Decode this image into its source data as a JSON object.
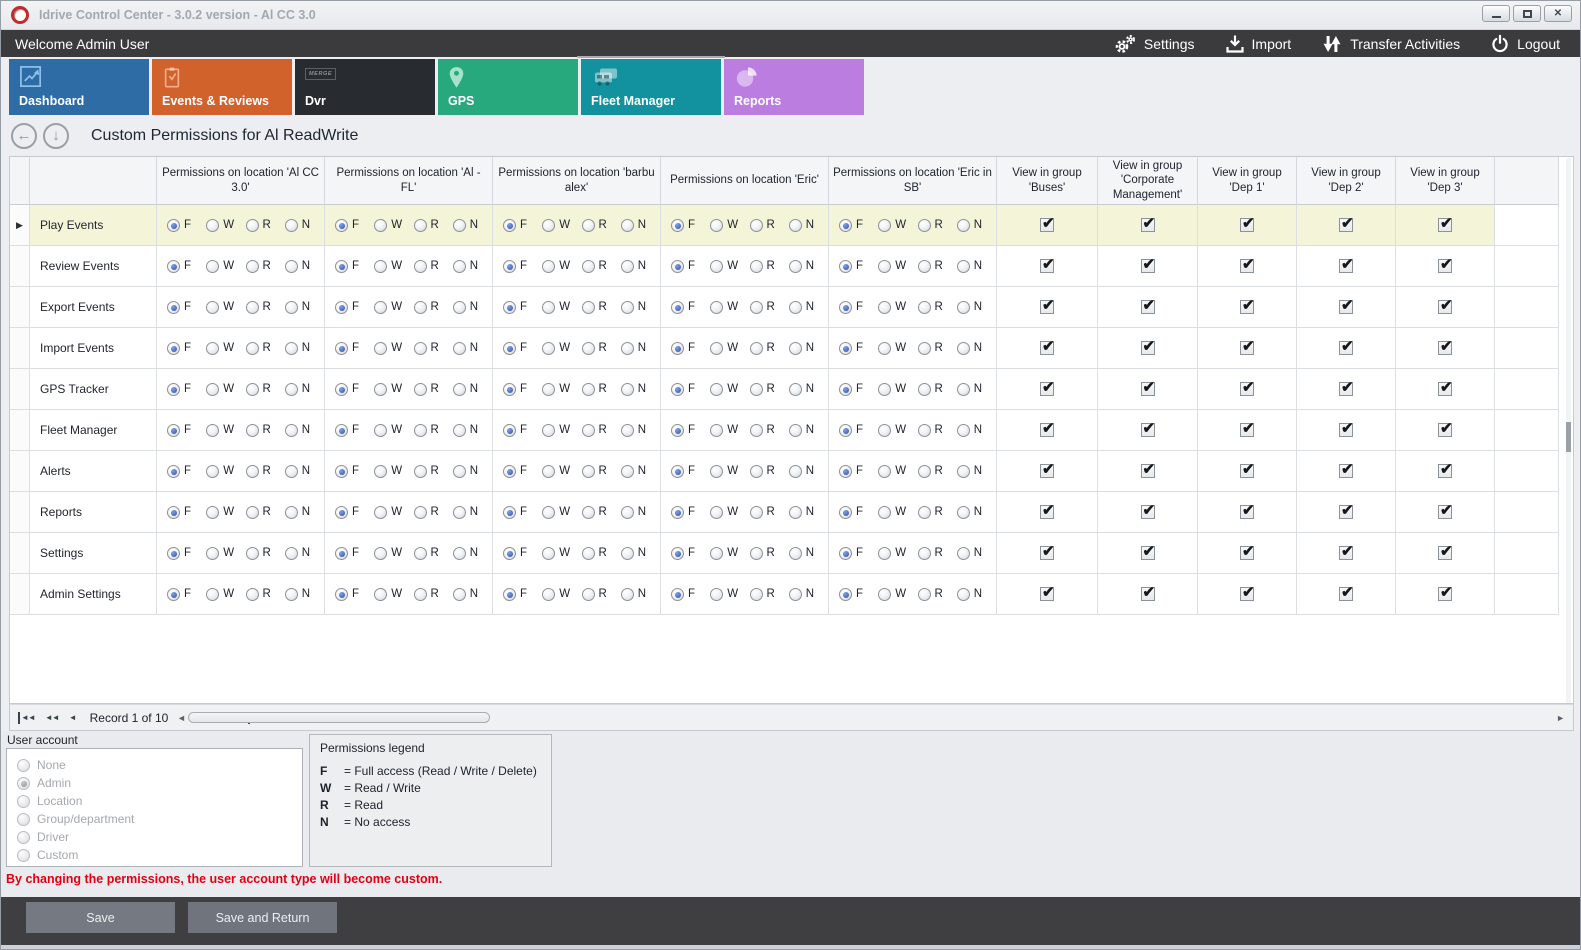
{
  "window": {
    "title": "Idrive Control Center - 3.0.2 version - Al CC 3.0"
  },
  "topbar": {
    "welcome": "Welcome Admin User",
    "actions": [
      {
        "label": "Settings",
        "icon": "gears-icon"
      },
      {
        "label": "Import",
        "icon": "import-icon"
      },
      {
        "label": "Transfer Activities",
        "icon": "transfer-icon"
      },
      {
        "label": "Logout",
        "icon": "power-icon"
      }
    ]
  },
  "tabs": [
    {
      "label": "Dashboard",
      "icon": "chart-trend-icon",
      "color": "#2e6ca5",
      "active": false
    },
    {
      "label": "Events & Reviews",
      "icon": "clipboard-check-icon",
      "color": "#d2622b",
      "active": false
    },
    {
      "label": "Dvr",
      "icon": "merge-badge-icon",
      "color": "#282c31",
      "active": false
    },
    {
      "label": "GPS",
      "icon": "map-pin-icon",
      "color": "#27a87d",
      "active": false
    },
    {
      "label": "Fleet Manager",
      "icon": "fleet-vehicles-icon",
      "color": "#11929e",
      "active": true
    },
    {
      "label": "Reports",
      "icon": "pie-chart-icon",
      "color": "#bc7de1",
      "active": false
    }
  ],
  "page": {
    "title": "Custom Permissions for Al ReadWrite"
  },
  "grid": {
    "permission_columns": [
      "Permissions on location 'Al CC 3.0'",
      "Permissions on location 'Al - FL'",
      "Permissions on location 'barbu alex'",
      "Permissions on location 'Eric'",
      "Permissions on location 'Eric in SB'"
    ],
    "group_columns": [
      "View in group 'Buses'",
      "View in group 'Corporate Management'",
      "View in group 'Dep 1'",
      "View in group 'Dep 2'",
      "View in group 'Dep 3'"
    ],
    "radio_options": [
      "F",
      "W",
      "R",
      "N"
    ],
    "rows": [
      {
        "label": "Play Events",
        "selected": true,
        "permissions": [
          "F",
          "F",
          "F",
          "F",
          "F"
        ],
        "groups": [
          true,
          true,
          true,
          true,
          true
        ]
      },
      {
        "label": "Review Events",
        "selected": false,
        "permissions": [
          "F",
          "F",
          "F",
          "F",
          "F"
        ],
        "groups": [
          true,
          true,
          true,
          true,
          true
        ]
      },
      {
        "label": "Export Events",
        "selected": false,
        "permissions": [
          "F",
          "F",
          "F",
          "F",
          "F"
        ],
        "groups": [
          true,
          true,
          true,
          true,
          true
        ]
      },
      {
        "label": "Import Events",
        "selected": false,
        "permissions": [
          "F",
          "F",
          "F",
          "F",
          "F"
        ],
        "groups": [
          true,
          true,
          true,
          true,
          true
        ]
      },
      {
        "label": "GPS Tracker",
        "selected": false,
        "permissions": [
          "F",
          "F",
          "F",
          "F",
          "F"
        ],
        "groups": [
          true,
          true,
          true,
          true,
          true
        ]
      },
      {
        "label": "Fleet Manager",
        "selected": false,
        "permissions": [
          "F",
          "F",
          "F",
          "F",
          "F"
        ],
        "groups": [
          true,
          true,
          true,
          true,
          true
        ]
      },
      {
        "label": "Alerts",
        "selected": false,
        "permissions": [
          "F",
          "F",
          "F",
          "F",
          "F"
        ],
        "groups": [
          true,
          true,
          true,
          true,
          true
        ]
      },
      {
        "label": "Reports",
        "selected": false,
        "permissions": [
          "F",
          "F",
          "F",
          "F",
          "F"
        ],
        "groups": [
          true,
          true,
          true,
          true,
          true
        ]
      },
      {
        "label": "Settings",
        "selected": false,
        "permissions": [
          "F",
          "F",
          "F",
          "F",
          "F"
        ],
        "groups": [
          true,
          true,
          true,
          true,
          true
        ]
      },
      {
        "label": "Admin Settings",
        "selected": false,
        "permissions": [
          "F",
          "F",
          "F",
          "F",
          "F"
        ],
        "groups": [
          true,
          true,
          true,
          true,
          true
        ]
      }
    ]
  },
  "navigator": {
    "record_text": "Record 1 of 10",
    "buttons_left": [
      {
        "icon": "first-record-icon"
      },
      {
        "icon": "prev-page-icon"
      },
      {
        "icon": "prev-record-icon"
      }
    ],
    "buttons_right": [
      {
        "icon": "next-record-icon"
      },
      {
        "icon": "next-page-icon"
      },
      {
        "icon": "last-record-icon"
      }
    ]
  },
  "user_account": {
    "label": "User account",
    "options": [
      {
        "label": "None",
        "selected": false
      },
      {
        "label": "Admin",
        "selected": true
      },
      {
        "label": "Location",
        "selected": false
      },
      {
        "label": "Group/department",
        "selected": false
      },
      {
        "label": "Driver",
        "selected": false
      },
      {
        "label": "Custom",
        "selected": false
      }
    ]
  },
  "legend": {
    "title": "Permissions legend",
    "items": [
      {
        "key": "F",
        "text": "= Full access (Read / Write / Delete)"
      },
      {
        "key": "W",
        "text": "= Read / Write"
      },
      {
        "key": "R",
        "text": "= Read"
      },
      {
        "key": "N",
        "text": "= No access"
      }
    ]
  },
  "warning": "By changing the permissions, the user account type will become custom.",
  "footer": {
    "save": "Save",
    "save_and_return": "Save and Return"
  }
}
